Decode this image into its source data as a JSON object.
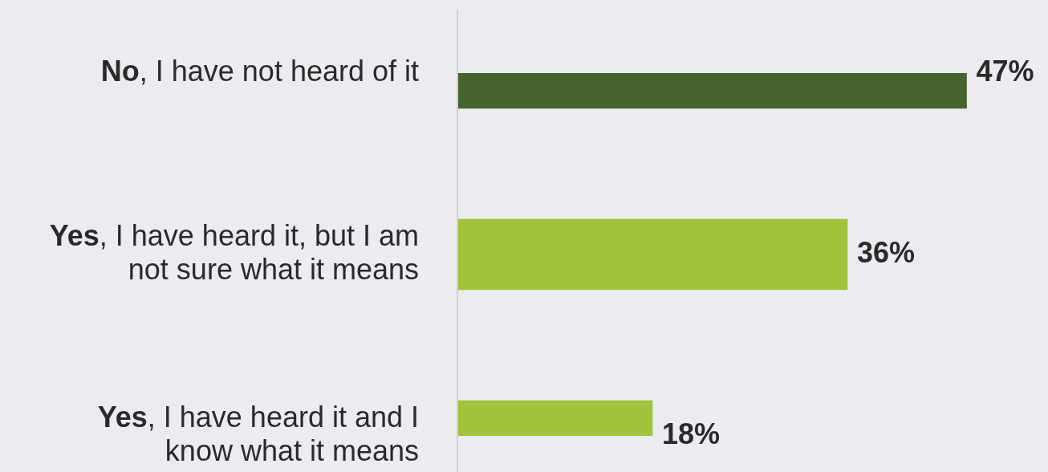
{
  "chart_data": {
    "type": "bar",
    "orientation": "horizontal",
    "categories": [
      "No, I have not heard of it",
      "Yes, I have heard it, but I am not sure what it means",
      "Yes, I have heard it and I know what it means"
    ],
    "values": [
      47,
      36,
      18
    ],
    "colors": [
      "#466330",
      "#a3c23b",
      "#a3c23b"
    ],
    "value_labels": [
      "47%",
      "36%",
      "18%"
    ],
    "tick_labels": "y",
    "legend": false
  }
}
